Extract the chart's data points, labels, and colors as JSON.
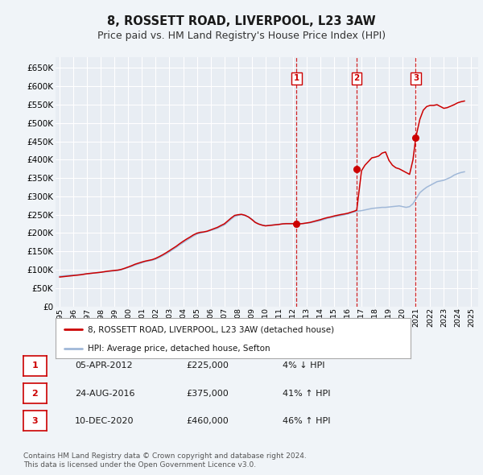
{
  "title": "8, ROSSETT ROAD, LIVERPOOL, L23 3AW",
  "subtitle": "Price paid vs. HM Land Registry's House Price Index (HPI)",
  "title_fontsize": 10.5,
  "subtitle_fontsize": 9,
  "background_color": "#f0f4f8",
  "plot_bg_color": "#e8edf3",
  "grid_color": "#ffffff",
  "ylabel_values": [
    0,
    50000,
    100000,
    150000,
    200000,
    250000,
    300000,
    350000,
    400000,
    450000,
    500000,
    550000,
    600000,
    650000
  ],
  "ylabel_labels": [
    "£0",
    "£50K",
    "£100K",
    "£150K",
    "£200K",
    "£250K",
    "£300K",
    "£350K",
    "£400K",
    "£450K",
    "£500K",
    "£550K",
    "£600K",
    "£650K"
  ],
  "xmin": 1994.7,
  "xmax": 2025.5,
  "ymin": 0,
  "ymax": 680000,
  "sale_color": "#cc0000",
  "hpi_color": "#a0b8d8",
  "purchase_dot_color": "#cc0000",
  "legend_label_sale": "8, ROSSETT ROAD, LIVERPOOL, L23 3AW (detached house)",
  "legend_label_hpi": "HPI: Average price, detached house, Sefton",
  "transaction_labels": [
    "1",
    "2",
    "3"
  ],
  "transaction_dates": [
    2012.27,
    2016.65,
    2020.95
  ],
  "transaction_prices": [
    225000,
    375000,
    460000
  ],
  "transaction_table": [
    {
      "num": "1",
      "date": "05-APR-2012",
      "price": "£225,000",
      "change": "4% ↓ HPI"
    },
    {
      "num": "2",
      "date": "24-AUG-2016",
      "price": "£375,000",
      "change": "41% ↑ HPI"
    },
    {
      "num": "3",
      "date": "10-DEC-2020",
      "price": "£460,000",
      "change": "46% ↑ HPI"
    }
  ],
  "footer": "Contains HM Land Registry data © Crown copyright and database right 2024.\nThis data is licensed under the Open Government Licence v3.0.",
  "hpi_x": [
    1995.0,
    1995.25,
    1995.5,
    1995.75,
    1996.0,
    1996.25,
    1996.5,
    1996.75,
    1997.0,
    1997.25,
    1997.5,
    1997.75,
    1998.0,
    1998.25,
    1998.5,
    1998.75,
    1999.0,
    1999.25,
    1999.5,
    1999.75,
    2000.0,
    2000.25,
    2000.5,
    2000.75,
    2001.0,
    2001.25,
    2001.5,
    2001.75,
    2002.0,
    2002.25,
    2002.5,
    2002.75,
    2003.0,
    2003.25,
    2003.5,
    2003.75,
    2004.0,
    2004.25,
    2004.5,
    2004.75,
    2005.0,
    2005.25,
    2005.5,
    2005.75,
    2006.0,
    2006.25,
    2006.5,
    2006.75,
    2007.0,
    2007.25,
    2007.5,
    2007.75,
    2008.0,
    2008.25,
    2008.5,
    2008.75,
    2009.0,
    2009.25,
    2009.5,
    2009.75,
    2010.0,
    2010.25,
    2010.5,
    2010.75,
    2011.0,
    2011.25,
    2011.5,
    2011.75,
    2012.0,
    2012.25,
    2012.5,
    2012.75,
    2013.0,
    2013.25,
    2013.5,
    2013.75,
    2014.0,
    2014.25,
    2014.5,
    2014.75,
    2015.0,
    2015.25,
    2015.5,
    2015.75,
    2016.0,
    2016.25,
    2016.5,
    2016.75,
    2017.0,
    2017.25,
    2017.5,
    2017.75,
    2018.0,
    2018.25,
    2018.5,
    2018.75,
    2019.0,
    2019.25,
    2019.5,
    2019.75,
    2020.0,
    2020.25,
    2020.5,
    2020.75,
    2021.0,
    2021.25,
    2021.5,
    2021.75,
    2022.0,
    2022.25,
    2022.5,
    2022.75,
    2023.0,
    2023.25,
    2023.5,
    2023.75,
    2024.0,
    2024.25,
    2024.5
  ],
  "hpi_y": [
    82000,
    83000,
    84000,
    85000,
    85500,
    86000,
    87000,
    88000,
    89000,
    90000,
    91000,
    92000,
    93000,
    94000,
    95000,
    96000,
    97000,
    98000,
    100000,
    103000,
    106000,
    109000,
    113000,
    116000,
    119000,
    122000,
    124000,
    126000,
    129000,
    133000,
    138000,
    143000,
    149000,
    155000,
    161000,
    168000,
    174000,
    180000,
    186000,
    192000,
    197000,
    200000,
    202000,
    204000,
    207000,
    210000,
    213000,
    218000,
    222000,
    230000,
    238000,
    245000,
    248000,
    250000,
    248000,
    244000,
    238000,
    230000,
    225000,
    222000,
    220000,
    221000,
    222000,
    223000,
    224000,
    225000,
    226000,
    226000,
    226000,
    225000,
    225000,
    226000,
    227000,
    228000,
    230000,
    232000,
    234000,
    237000,
    240000,
    242000,
    244000,
    246000,
    248000,
    250000,
    252000,
    255000,
    258000,
    260000,
    261000,
    263000,
    265000,
    267000,
    268000,
    269000,
    270000,
    270000,
    271000,
    272000,
    273000,
    274000,
    272000,
    270000,
    272000,
    280000,
    295000,
    310000,
    318000,
    325000,
    330000,
    335000,
    340000,
    342000,
    344000,
    348000,
    352000,
    358000,
    362000,
    365000,
    367000
  ],
  "sale_x": [
    1995.0,
    1995.25,
    1995.5,
    1995.75,
    1996.0,
    1996.25,
    1996.5,
    1996.75,
    1997.0,
    1997.25,
    1997.5,
    1997.75,
    1998.0,
    1998.25,
    1998.5,
    1998.75,
    1999.0,
    1999.25,
    1999.5,
    1999.75,
    2000.0,
    2000.25,
    2000.5,
    2000.75,
    2001.0,
    2001.25,
    2001.5,
    2001.75,
    2002.0,
    2002.25,
    2002.5,
    2002.75,
    2003.0,
    2003.25,
    2003.5,
    2003.75,
    2004.0,
    2004.25,
    2004.5,
    2004.75,
    2005.0,
    2005.25,
    2005.5,
    2005.75,
    2006.0,
    2006.25,
    2006.5,
    2006.75,
    2007.0,
    2007.25,
    2007.5,
    2007.75,
    2008.0,
    2008.25,
    2008.5,
    2008.75,
    2009.0,
    2009.25,
    2009.5,
    2009.75,
    2010.0,
    2010.25,
    2010.5,
    2010.75,
    2011.0,
    2011.25,
    2011.5,
    2011.75,
    2012.0,
    2012.27,
    2012.5,
    2012.75,
    2013.0,
    2013.25,
    2013.5,
    2013.75,
    2014.0,
    2014.25,
    2014.5,
    2014.75,
    2015.0,
    2015.25,
    2015.5,
    2015.75,
    2016.0,
    2016.25,
    2016.5,
    2016.65,
    2017.0,
    2017.25,
    2017.5,
    2017.75,
    2018.0,
    2018.25,
    2018.5,
    2018.75,
    2019.0,
    2019.25,
    2019.5,
    2019.75,
    2020.0,
    2020.25,
    2020.5,
    2020.75,
    2020.95,
    2021.25,
    2021.5,
    2021.75,
    2022.0,
    2022.25,
    2022.5,
    2022.75,
    2023.0,
    2023.25,
    2023.5,
    2023.75,
    2024.0,
    2024.25,
    2024.5
  ],
  "sale_y": [
    80000,
    81000,
    82000,
    83000,
    84000,
    85000,
    86000,
    87500,
    89000,
    90000,
    91000,
    92000,
    93000,
    94500,
    96000,
    97000,
    98000,
    99000,
    101000,
    104000,
    107500,
    111000,
    115000,
    118000,
    121000,
    123500,
    125500,
    127500,
    131000,
    135500,
    140500,
    146000,
    152000,
    158000,
    164000,
    171000,
    177500,
    183500,
    189000,
    195000,
    199500,
    202000,
    203000,
    205000,
    208500,
    212000,
    215500,
    220500,
    225000,
    233000,
    241000,
    248000,
    250000,
    251000,
    248500,
    244000,
    237000,
    229000,
    224500,
    221500,
    219500,
    220500,
    221500,
    222500,
    223500,
    225000,
    225500,
    225500,
    225500,
    225000,
    225000,
    226000,
    227500,
    229000,
    231500,
    234000,
    236500,
    239500,
    242000,
    244000,
    246500,
    248500,
    250500,
    252000,
    254000,
    257000,
    260000,
    262500,
    370000,
    385000,
    395000,
    405000,
    407000,
    410000,
    418000,
    421000,
    398000,
    385000,
    378000,
    375000,
    370000,
    365000,
    360000,
    400000,
    460000,
    510000,
    535000,
    545000,
    548000,
    548000,
    550000,
    545000,
    540000,
    542000,
    546000,
    550000,
    555000,
    558000,
    560000
  ]
}
